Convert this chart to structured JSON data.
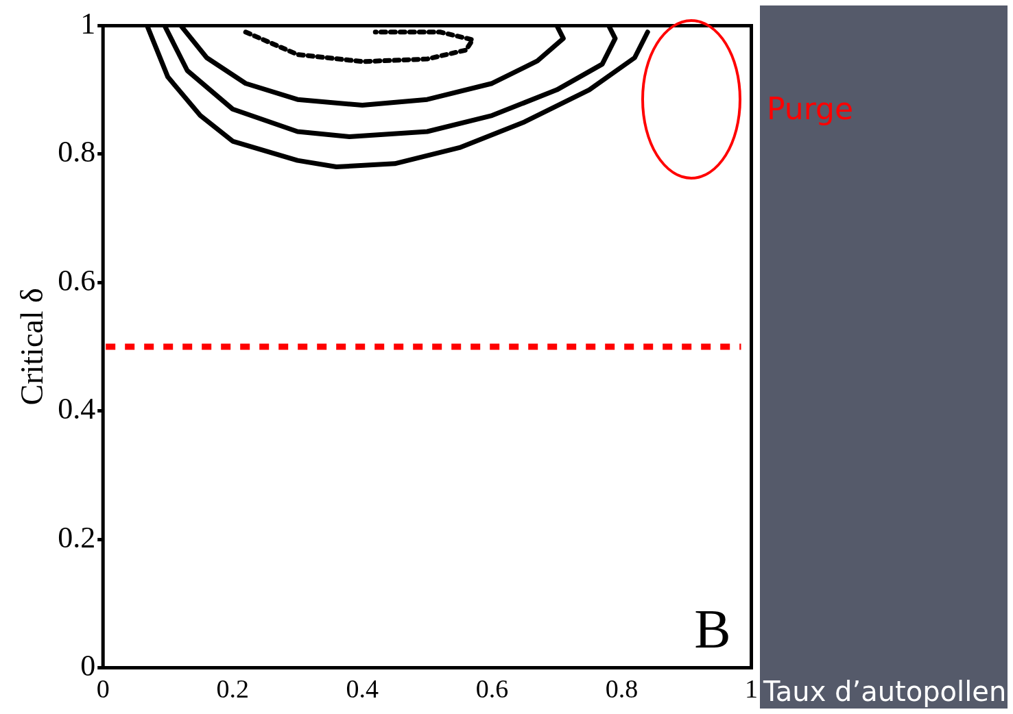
{
  "chart_data": {
    "type": "line",
    "xlabel": "Taux d’autopollen",
    "ylabel": "Critical δ",
    "xlim": [
      0,
      1
    ],
    "ylim": [
      0,
      1
    ],
    "xticks": [
      0,
      0.2,
      0.4,
      0.6,
      0.8,
      1
    ],
    "yticks": [
      0,
      0.2,
      0.4,
      0.6,
      0.8,
      1
    ],
    "grid": false,
    "legend": false,
    "marker": "none",
    "series": [
      {
        "color": "#000000",
        "line_style": "solid",
        "x": [
          0.068,
          0.1,
          0.15,
          0.2,
          0.3,
          0.36,
          0.45,
          0.55,
          0.65,
          0.75,
          0.82,
          0.84
        ],
        "values": [
          1,
          0.92,
          0.86,
          0.82,
          0.79,
          0.78,
          0.785,
          0.81,
          0.85,
          0.9,
          0.95,
          0.99
        ]
      },
      {
        "color": "#000000",
        "line_style": "solid",
        "x": [
          0.095,
          0.13,
          0.2,
          0.3,
          0.38,
          0.5,
          0.6,
          0.7,
          0.77,
          0.79,
          0.78
        ],
        "values": [
          1,
          0.93,
          0.87,
          0.835,
          0.827,
          0.835,
          0.86,
          0.9,
          0.94,
          0.98,
          1
        ]
      },
      {
        "color": "#000000",
        "line_style": "solid",
        "x": [
          0.12,
          0.16,
          0.22,
          0.3,
          0.4,
          0.5,
          0.6,
          0.67,
          0.71,
          0.7
        ],
        "values": [
          1,
          0.95,
          0.91,
          0.885,
          0.876,
          0.885,
          0.91,
          0.945,
          0.98,
          1
        ]
      },
      {
        "color": "#000000",
        "line_style": "dotted",
        "x": [
          0.22,
          0.3,
          0.4,
          0.5,
          0.56,
          0.57,
          0.52,
          0.42
        ],
        "values": [
          0.99,
          0.955,
          0.944,
          0.948,
          0.962,
          0.978,
          0.99,
          0.99
        ]
      }
    ],
    "ref_lines": [
      {
        "axis": "y",
        "value": 0.5,
        "color": "#ff0000",
        "line_style": "dotted"
      }
    ],
    "annotations": [
      "B",
      "Purge"
    ]
  }
}
